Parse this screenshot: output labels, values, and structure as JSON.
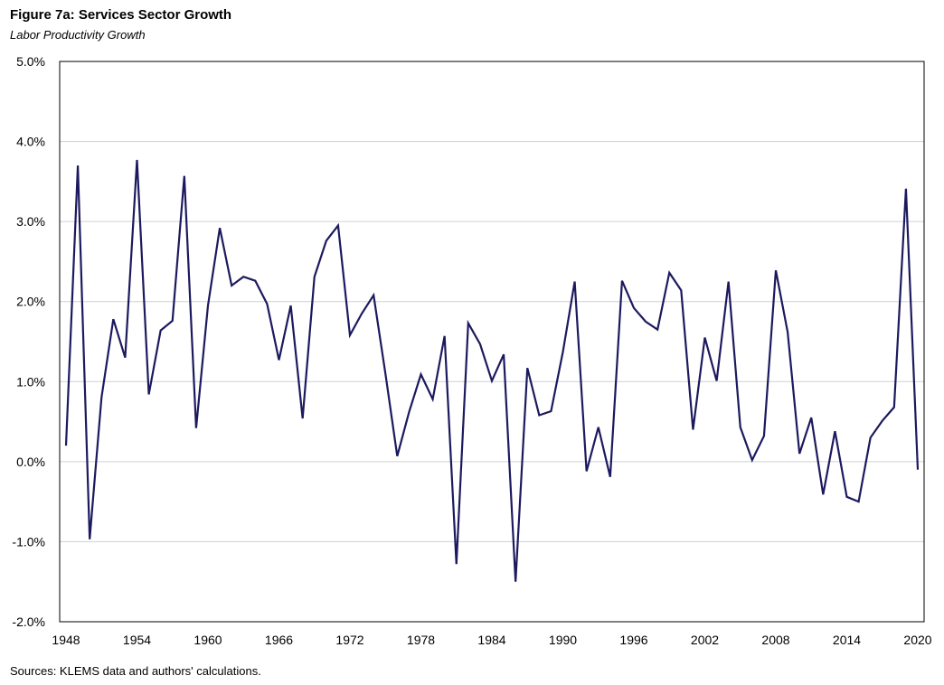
{
  "title": "Figure 7a: Services Sector Growth",
  "subtitle": "Labor Productivity Growth",
  "source": "Sources: KLEMS data and authors' calculations.",
  "colors": {
    "line": "#1c1a5e",
    "grid": "#d0d0d0",
    "axis": "#000000"
  },
  "chart_data": {
    "type": "line",
    "title": "Figure 7a: Services Sector Growth",
    "subtitle": "Labor Productivity Growth",
    "xlabel": "",
    "ylabel": "",
    "ylim": [
      -2.0,
      5.0
    ],
    "xlim": [
      1948,
      2020
    ],
    "y_ticks": [
      "5.0%",
      "4.0%",
      "3.0%",
      "2.0%",
      "1.0%",
      "0.0%",
      "-1.0%",
      "-2.0%"
    ],
    "y_tick_values": [
      5,
      4,
      3,
      2,
      1,
      0,
      -1,
      -2
    ],
    "x_ticks": [
      "1948",
      "1954",
      "1960",
      "1966",
      "1972",
      "1978",
      "1984",
      "1990",
      "1996",
      "2002",
      "2008",
      "2014",
      "2020"
    ],
    "grid": true,
    "series": [
      {
        "x": [
          1948,
          1949,
          1950,
          1951,
          1952,
          1953,
          1954,
          1955,
          1956,
          1957,
          1958,
          1959,
          1960,
          1961,
          1962,
          1963,
          1964,
          1965,
          1966,
          1967,
          1968,
          1969,
          1970,
          1971,
          1972,
          1973,
          1974,
          1975,
          1976,
          1977,
          1978,
          1979,
          1980,
          1981,
          1982,
          1983,
          1984,
          1985,
          1986,
          1987,
          1988,
          1989,
          1990,
          1991,
          1992,
          1993,
          1994,
          1995,
          1996,
          1997,
          1998,
          1999,
          2000,
          2001,
          2002,
          2003,
          2004,
          2005,
          2006,
          2007,
          2008,
          2009,
          2010,
          2011,
          2012,
          2013,
          2014,
          2015,
          2016,
          2017,
          2018,
          2019,
          2020
        ],
        "values": [
          0.2,
          3.7,
          -0.97,
          0.8,
          1.78,
          1.3,
          3.77,
          0.84,
          1.64,
          1.76,
          3.57,
          0.42,
          1.95,
          2.92,
          2.2,
          2.31,
          2.26,
          1.97,
          1.27,
          1.95,
          0.54,
          2.31,
          2.76,
          2.95,
          1.58,
          1.85,
          2.08,
          1.1,
          0.07,
          0.62,
          1.09,
          0.78,
          1.57,
          -1.28,
          1.73,
          1.47,
          1.01,
          1.34,
          -1.5,
          1.17,
          0.58,
          0.63,
          1.37,
          2.25,
          -0.12,
          0.43,
          -0.19,
          2.26,
          1.92,
          1.75,
          1.65,
          2.36,
          2.14,
          0.4,
          1.55,
          1.01,
          2.25,
          0.43,
          0.02,
          0.32,
          2.39,
          1.62,
          0.1,
          0.55,
          -0.41,
          0.38,
          -0.44,
          -0.5,
          0.3,
          0.51,
          0.68,
          3.41,
          -0.1
        ]
      }
    ]
  }
}
